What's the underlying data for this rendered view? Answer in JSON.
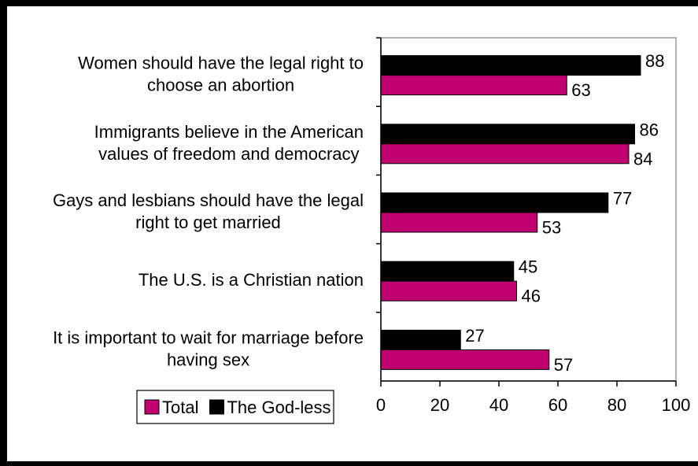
{
  "chart_data": {
    "type": "bar",
    "orientation": "horizontal",
    "categories": [
      [
        "Women should have the legal right to",
        "choose an abortion"
      ],
      [
        "Immigrants believe in the American",
        "values of freedom and democracy"
      ],
      [
        "Gays and lesbians should have the legal",
        "right to get married"
      ],
      [
        "The U.S. is a Christian nation"
      ],
      [
        "It is important to wait for marriage before",
        "having sex"
      ]
    ],
    "series": [
      {
        "name": "The God-less",
        "color": "#000000",
        "values": [
          88,
          86,
          77,
          45,
          27
        ]
      },
      {
        "name": "Total",
        "color": "#c0006e",
        "values": [
          63,
          84,
          53,
          46,
          57
        ]
      }
    ],
    "xlim": [
      0,
      100
    ],
    "xticks": [
      0,
      20,
      40,
      60,
      80,
      100
    ],
    "legend": {
      "position": "bottom-left",
      "order": [
        "Total",
        "The God-less"
      ]
    },
    "grid": false
  }
}
